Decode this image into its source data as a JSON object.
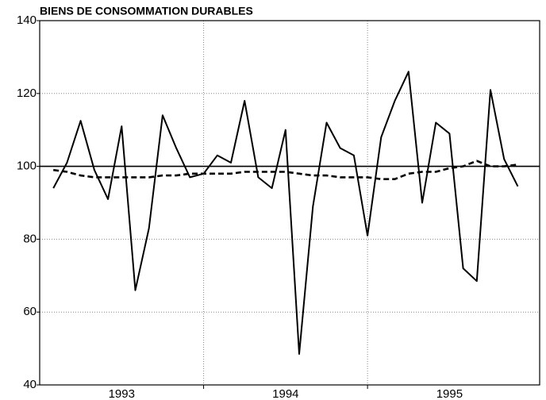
{
  "chart_data": {
    "type": "line",
    "title": "BIENS DE CONSOMMATION DURABLES",
    "x": [
      1,
      2,
      3,
      4,
      5,
      6,
      7,
      8,
      9,
      10,
      11,
      12,
      13,
      14,
      15,
      16,
      17,
      18,
      19,
      20,
      21,
      22,
      23,
      24,
      25,
      26,
      27,
      28,
      29,
      30,
      31,
      32,
      33,
      34,
      35
    ],
    "series": [
      {
        "color": "#000000",
        "dash": false,
        "values": [
          94,
          101,
          112.5,
          99,
          91,
          111,
          66,
          83,
          114,
          105,
          97,
          98,
          103,
          101,
          118,
          97,
          94,
          110,
          48.5,
          89,
          112,
          105,
          103,
          81,
          108,
          118,
          126,
          90,
          112,
          109,
          72,
          68.5,
          121,
          102,
          94.5
        ]
      },
      {
        "color": "#000000",
        "dash": true,
        "values": [
          99,
          98.5,
          97.5,
          97,
          97,
          97,
          97,
          97,
          97.5,
          97.5,
          98,
          98,
          98,
          98,
          98.5,
          98.5,
          98.5,
          98.5,
          98,
          97.5,
          97.5,
          97,
          97,
          97,
          96.5,
          96.5,
          98,
          98.5,
          98.5,
          99.5,
          100,
          101.5,
          100,
          100,
          100.5
        ]
      }
    ],
    "xlim": [
      0,
      36.6
    ],
    "xticks": [
      12,
      24
    ],
    "year_labels": [
      "1993",
      "1994",
      "1995"
    ],
    "ylim": [
      40,
      140
    ],
    "yticks": [
      40,
      60,
      80,
      100,
      120,
      140
    ],
    "reference_line": 100,
    "grid": true
  }
}
